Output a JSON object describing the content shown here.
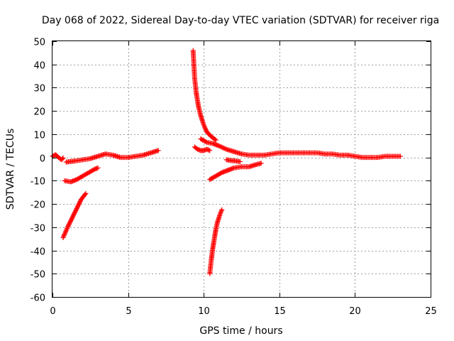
{
  "chart_data": {
    "type": "scatter",
    "title": "Day 068 of 2022, Sidereal Day-to-day VTEC variation (SDTVAR) for receiver riga",
    "xlabel": "GPS time / hours",
    "ylabel": "SDTVAR / TECUs",
    "xlim": [
      0,
      25
    ],
    "ylim": [
      -60,
      50
    ],
    "xticks": [
      0,
      5,
      10,
      15,
      20,
      25
    ],
    "yticks": [
      -60,
      -50,
      -40,
      -30,
      -20,
      -10,
      0,
      10,
      20,
      30,
      40,
      50
    ],
    "grid": true,
    "marker": "+",
    "color": "#ff0000",
    "series": [
      {
        "name": "track-1",
        "points": [
          [
            0.0,
            0.5
          ],
          [
            0.2,
            1.2
          ],
          [
            0.4,
            0.0
          ],
          [
            0.6,
            -1.0
          ],
          [
            0.7,
            -0.2
          ]
        ]
      },
      {
        "name": "track-2",
        "points": [
          [
            0.9,
            -2.0
          ],
          [
            1.5,
            -1.5
          ],
          [
            2.0,
            -1.0
          ],
          [
            2.5,
            -0.5
          ],
          [
            3.0,
            0.5
          ],
          [
            3.5,
            1.5
          ],
          [
            4.0,
            1.0
          ],
          [
            4.5,
            0.0
          ],
          [
            5.0,
            0.0
          ],
          [
            5.5,
            0.5
          ],
          [
            6.0,
            1.0
          ],
          [
            6.5,
            2.0
          ],
          [
            7.0,
            3.0
          ]
        ]
      },
      {
        "name": "track-3",
        "points": [
          [
            0.8,
            -10.0
          ],
          [
            1.2,
            -10.5
          ],
          [
            1.6,
            -9.5
          ],
          [
            2.0,
            -8.0
          ],
          [
            2.4,
            -6.5
          ],
          [
            2.8,
            -5.0
          ],
          [
            3.0,
            -4.5
          ]
        ]
      },
      {
        "name": "track-4",
        "points": [
          [
            0.7,
            -34.5
          ],
          [
            1.0,
            -30.0
          ],
          [
            1.3,
            -26.0
          ],
          [
            1.6,
            -22.0
          ],
          [
            1.9,
            -18.0
          ],
          [
            2.2,
            -15.5
          ]
        ]
      },
      {
        "name": "track-5",
        "points": [
          [
            9.3,
            46.0
          ],
          [
            9.35,
            40.0
          ],
          [
            9.4,
            34.0
          ],
          [
            9.5,
            28.0
          ],
          [
            9.65,
            22.0
          ],
          [
            9.8,
            18.0
          ],
          [
            10.0,
            14.0
          ],
          [
            10.2,
            11.0
          ],
          [
            10.5,
            9.0
          ],
          [
            10.8,
            7.5
          ]
        ]
      },
      {
        "name": "track-6",
        "points": [
          [
            9.4,
            4.5
          ],
          [
            9.6,
            3.5
          ],
          [
            9.8,
            3.0
          ],
          [
            10.0,
            3.0
          ],
          [
            10.2,
            3.5
          ],
          [
            10.4,
            3.0
          ]
        ]
      },
      {
        "name": "track-7",
        "points": [
          [
            9.8,
            8.0
          ],
          [
            10.2,
            6.5
          ],
          [
            10.6,
            6.0
          ],
          [
            11.0,
            5.0
          ],
          [
            11.5,
            3.5
          ],
          [
            12.0,
            2.5
          ],
          [
            12.5,
            1.5
          ],
          [
            13.0,
            1.0
          ],
          [
            13.5,
            1.0
          ],
          [
            14.0,
            1.0
          ],
          [
            14.5,
            1.5
          ],
          [
            15.0,
            2.0
          ],
          [
            15.5,
            2.0
          ],
          [
            16.0,
            2.0
          ],
          [
            16.5,
            2.0
          ],
          [
            17.0,
            2.0
          ],
          [
            17.5,
            2.0
          ],
          [
            18.0,
            1.5
          ],
          [
            18.5,
            1.5
          ],
          [
            19.0,
            1.0
          ],
          [
            19.5,
            1.0
          ],
          [
            20.0,
            0.5
          ],
          [
            20.5,
            0.0
          ],
          [
            21.0,
            0.0
          ],
          [
            21.5,
            0.0
          ],
          [
            22.0,
            0.5
          ],
          [
            22.5,
            0.5
          ],
          [
            23.0,
            0.5
          ]
        ]
      },
      {
        "name": "track-8",
        "points": [
          [
            10.4,
            -9.5
          ],
          [
            10.8,
            -8.0
          ],
          [
            11.2,
            -6.5
          ],
          [
            11.6,
            -5.5
          ],
          [
            12.0,
            -4.5
          ],
          [
            12.5,
            -4.0
          ],
          [
            13.0,
            -4.0
          ],
          [
            13.5,
            -3.0
          ],
          [
            13.8,
            -2.5
          ]
        ]
      },
      {
        "name": "track-9",
        "points": [
          [
            11.5,
            -1.0
          ],
          [
            11.8,
            -1.3
          ],
          [
            12.1,
            -1.5
          ],
          [
            12.4,
            -1.8
          ]
        ]
      },
      {
        "name": "track-10",
        "points": [
          [
            10.4,
            -50.0
          ],
          [
            10.5,
            -44.0
          ],
          [
            10.6,
            -39.0
          ],
          [
            10.7,
            -35.0
          ],
          [
            10.8,
            -31.0
          ],
          [
            10.9,
            -28.0
          ],
          [
            11.0,
            -26.0
          ],
          [
            11.1,
            -24.0
          ],
          [
            11.2,
            -22.5
          ]
        ]
      }
    ]
  }
}
